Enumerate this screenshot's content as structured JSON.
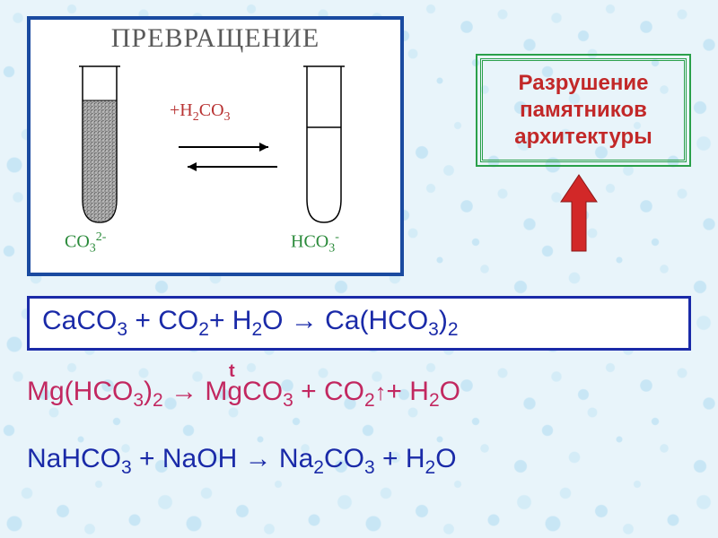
{
  "colors": {
    "diagram_border": "#1a4aa0",
    "diagram_title_color": "#5a5a5a",
    "reagent_color": "#b83232",
    "tube_label_color": "#2a8a3a",
    "arrow_color": "#000000",
    "info_border": "#2aa04a",
    "info_text": "#c22828",
    "red_arrow": "#d22828",
    "eq_border": "#1a2aa8",
    "eq_text": "#1a2aa8",
    "eq2_text": "#c22860",
    "eq3_text": "#1a2aa8",
    "t_color": "#c22860",
    "tube_stroke": "#000000",
    "tube_fill_texture": "#888888"
  },
  "diagram": {
    "title": "ПРЕВРАЩЕНИЕ",
    "reagent_prefix": "+",
    "reagent_h": "H",
    "reagent_2": "2",
    "reagent_co": "CO",
    "reagent_3": "3",
    "left_label_co": "CO",
    "left_label_3": "3",
    "left_label_2minus": "2-",
    "right_label_hco": "HCO",
    "right_label_3": "3",
    "right_label_minus": "-"
  },
  "info": {
    "line1": "Разрушение",
    "line2": "памятников",
    "line3": "архитектуры"
  },
  "equations": {
    "eq1_parts": [
      "CaCO",
      "3",
      " + CO",
      "2",
      "+ H",
      "2",
      "O → Ca(HCO",
      "3",
      ")",
      "2"
    ],
    "eq2_parts": [
      "Mg(HCO",
      "3",
      ")",
      "2",
      " → MgCO",
      "3",
      " + CO",
      "2",
      "↑",
      "+ H",
      "2",
      "O"
    ],
    "eq3_parts": [
      "NaHCO",
      "3",
      " + NaOH → Na",
      "2",
      "CO",
      "3",
      " + H",
      "2",
      "O"
    ],
    "t_label": "t"
  }
}
